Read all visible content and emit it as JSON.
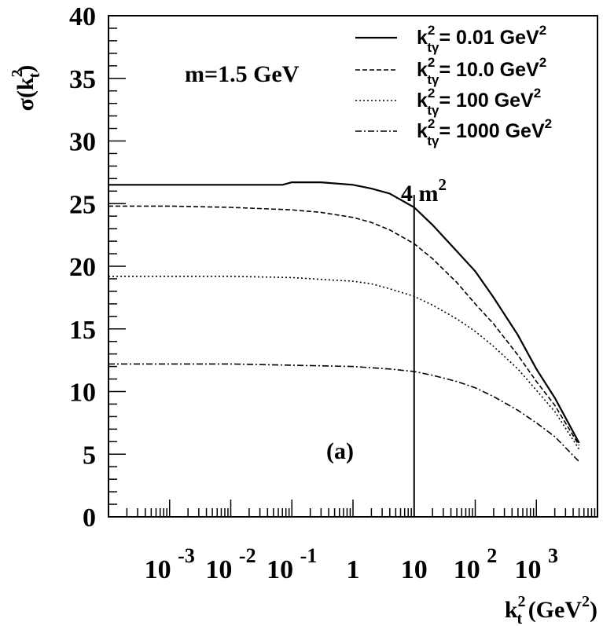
{
  "chart_data": {
    "type": "line",
    "xscale": "log",
    "xlim": [
      0.0001,
      10000
    ],
    "ylim": [
      0,
      40
    ],
    "grid": false,
    "legend_position": "top-right",
    "xlabel": {
      "main": "k",
      "sub": "t",
      "sup": "2",
      "rest": " (GeV",
      "rest_sup": "2",
      "close": ")"
    },
    "ylabel": {
      "main": "σ(k",
      "sub": "t",
      "sup": "2",
      "close": ")"
    },
    "x_ticks": [
      {
        "value": 0.001,
        "base": "10 ",
        "exp": "-3"
      },
      {
        "value": 0.01,
        "base": "10 ",
        "exp": "-2"
      },
      {
        "value": 0.1,
        "base": "10 ",
        "exp": "-1"
      },
      {
        "value": 1,
        "base": "1",
        "exp": ""
      },
      {
        "value": 10,
        "base": "10",
        "exp": ""
      },
      {
        "value": 100,
        "base": "10 ",
        "exp": "2"
      },
      {
        "value": 1000,
        "base": "10 ",
        "exp": "3"
      }
    ],
    "y_ticks": [
      {
        "value": 0,
        "label": "0"
      },
      {
        "value": 5,
        "label": "5"
      },
      {
        "value": 10,
        "label": "10"
      },
      {
        "value": 15,
        "label": "15"
      },
      {
        "value": 20,
        "label": "20"
      },
      {
        "value": 25,
        "label": "25"
      },
      {
        "value": 30,
        "label": "30"
      },
      {
        "value": 35,
        "label": "35"
      },
      {
        "value": 40,
        "label": "40"
      }
    ],
    "annotations": {
      "mass": "m=1.5 GeV",
      "panel": "(a)",
      "vline": {
        "x": 10,
        "label_main": "4 m",
        "label_sup": "2"
      }
    },
    "series": [
      {
        "label_main": "k",
        "label_sub": "tγ",
        "label_sup": "2",
        "label_rest": "= 0.01 GeV",
        "label_rest_sup": "2",
        "dash": "solid",
        "x": [
          0.0001,
          0.001,
          0.01,
          0.07,
          0.1,
          0.3,
          1,
          2,
          4,
          10,
          20,
          50,
          100,
          200,
          500,
          1000,
          2000,
          5000
        ],
        "y": [
          26.5,
          26.5,
          26.5,
          26.5,
          26.7,
          26.7,
          26.5,
          26.2,
          25.8,
          24.7,
          23.3,
          21.2,
          19.6,
          17.5,
          14.5,
          11.8,
          9.5,
          5.9
        ]
      },
      {
        "label_main": "k",
        "label_sub": "tγ",
        "label_sup": "2",
        "label_rest": "= 10.0 GeV",
        "label_rest_sup": "2",
        "dash": "dashed",
        "x": [
          0.0001,
          0.001,
          0.01,
          0.1,
          0.3,
          1,
          2,
          4,
          10,
          20,
          50,
          100,
          200,
          500,
          1000,
          2000,
          5000
        ],
        "y": [
          24.8,
          24.8,
          24.7,
          24.5,
          24.3,
          23.9,
          23.5,
          22.9,
          21.8,
          20.6,
          18.7,
          17.0,
          15.4,
          12.9,
          10.8,
          8.9,
          5.7
        ]
      },
      {
        "label_main": "k",
        "label_sub": "tγ",
        "label_sup": "2",
        "label_rest": "= 100 GeV",
        "label_rest_sup": "2",
        "dash": "dotted",
        "x": [
          0.0001,
          0.001,
          0.01,
          0.1,
          1,
          2,
          4,
          10,
          20,
          50,
          100,
          200,
          500,
          1000,
          2000,
          5000
        ],
        "y": [
          19.2,
          19.2,
          19.2,
          19.1,
          18.8,
          18.6,
          18.2,
          17.6,
          16.9,
          15.8,
          14.8,
          13.6,
          11.8,
          10.1,
          8.4,
          5.4
        ]
      },
      {
        "label_main": "k",
        "label_sub": "tγ",
        "label_sup": "2",
        "label_rest": "= 1000 GeV",
        "label_rest_sup": "2",
        "dash": "dashdot",
        "x": [
          0.0001,
          0.001,
          0.01,
          0.1,
          1,
          4,
          10,
          20,
          50,
          100,
          200,
          500,
          1000,
          2000,
          5000
        ],
        "y": [
          12.2,
          12.2,
          12.2,
          12.1,
          12.0,
          11.8,
          11.6,
          11.3,
          10.8,
          10.3,
          9.6,
          8.5,
          7.5,
          6.4,
          4.4
        ]
      }
    ]
  }
}
